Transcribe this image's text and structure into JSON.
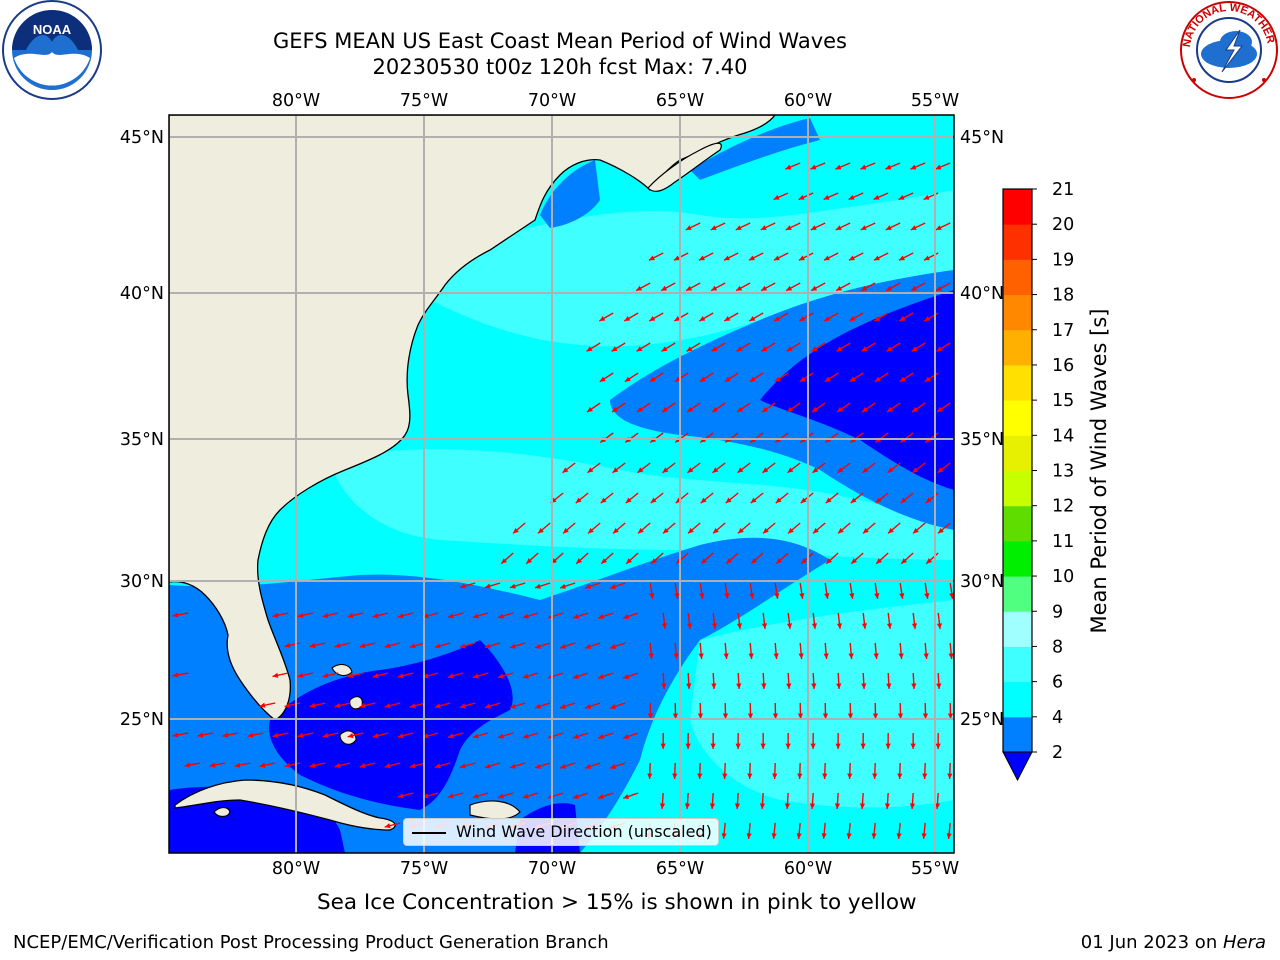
{
  "title": {
    "line1": "GEFS MEAN US East Coast Mean Period of Wind Waves",
    "line2": "20230530 t00z 120h fcst   Max: 7.40"
  },
  "map": {
    "lon_labels": [
      "80°W",
      "75°W",
      "70°W",
      "65°W",
      "60°W",
      "55°W"
    ],
    "lat_labels": [
      "45°N",
      "40°N",
      "35°N",
      "30°N",
      "25°N"
    ],
    "legend_label": "Wind Wave Direction (unscaled)",
    "arrow_color": "#ff0000",
    "land_color": "#efedde",
    "gridline_color": "#b0b0b0"
  },
  "colorbar": {
    "label": "Mean Period of Wind Waves [s]",
    "ticks": [
      "2",
      "4",
      "6",
      "8",
      "9",
      "10",
      "11",
      "12",
      "13",
      "14",
      "15",
      "16",
      "17",
      "18",
      "19",
      "20",
      "21"
    ],
    "colors": [
      "#0080ff",
      "#00ffff",
      "#40ffff",
      "#a0ffff",
      "#50ff80",
      "#00ee00",
      "#60dd00",
      "#c8ff00",
      "#e6f000",
      "#ffff00",
      "#ffe000",
      "#ffb000",
      "#ff8800",
      "#ff6000",
      "#ff3000",
      "#ff0000"
    ],
    "under_color": "#0000ff"
  },
  "subcaption": "Sea Ice Concentration > 15% is shown in pink to yellow",
  "footer": {
    "left": "NCEP/EMC/Verification Post Processing Product Generation Branch",
    "right_prefix": "01 Jun 2023 on ",
    "right_italic": "Hera"
  },
  "logos": {
    "noaa_text": "NOAA",
    "nws_text": "NATIONAL WEATHER SERVICE"
  }
}
